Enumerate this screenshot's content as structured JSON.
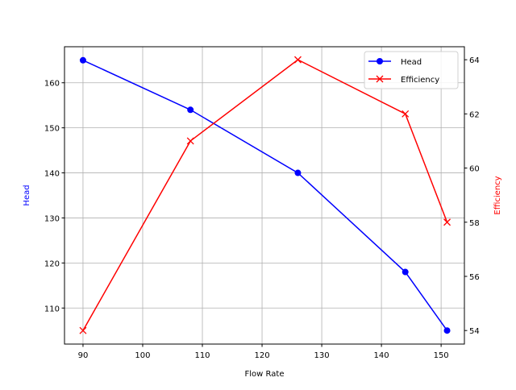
{
  "chart_data": {
    "type": "line",
    "title": "",
    "xlabel": "Flow Rate",
    "ylabel": "Head",
    "ylabel_right": "Efficiency",
    "x": [
      90,
      108,
      126,
      144,
      151
    ],
    "series": [
      {
        "name": "Head",
        "axis": "left",
        "color": "#0000ff",
        "marker": "circle",
        "values": [
          165,
          154,
          140,
          118,
          105
        ]
      },
      {
        "name": "Efficiency",
        "axis": "right",
        "color": "#ff0000",
        "marker": "x",
        "values": [
          54,
          61,
          64,
          62,
          58
        ]
      }
    ],
    "xlim": [
      86.9,
      153.9
    ],
    "ylim": [
      102.0,
      168.0
    ],
    "ylim_right": [
      53.5,
      64.48
    ],
    "xticks": [
      90,
      100,
      110,
      120,
      130,
      140,
      150
    ],
    "yticks": [
      110,
      120,
      130,
      140,
      150,
      160
    ],
    "yticks_right": [
      54,
      56,
      58,
      60,
      62,
      64
    ],
    "grid": true,
    "legend_position": "upper right"
  }
}
